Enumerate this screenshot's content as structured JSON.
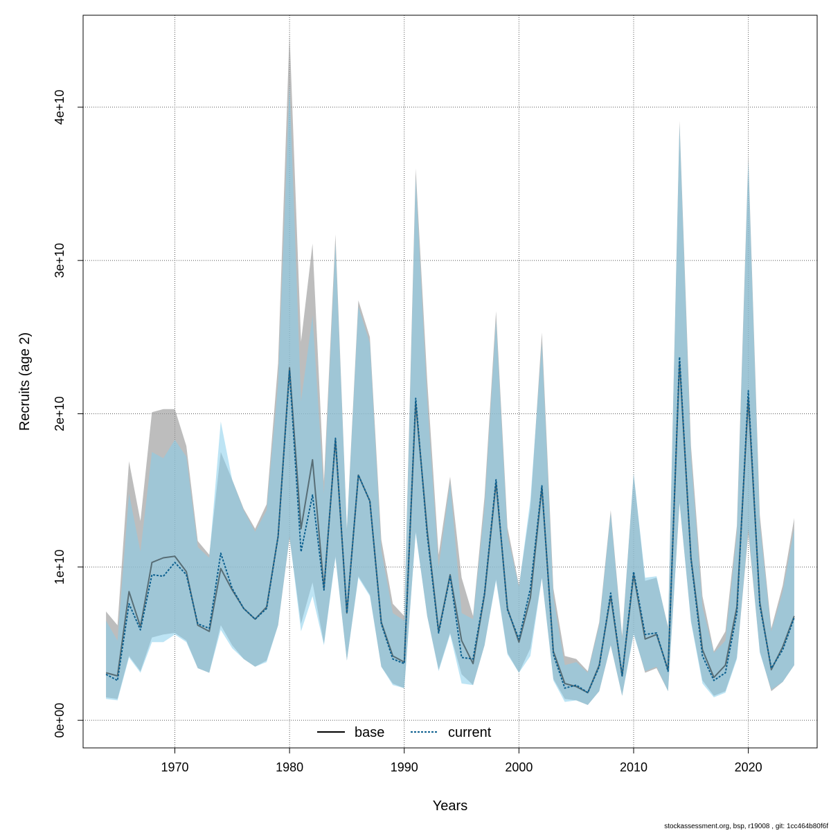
{
  "chart_data": {
    "type": "line",
    "xlabel": "Years",
    "ylabel": "Recruits (age 2)",
    "xlim": [
      1962,
      2026
    ],
    "ylim": [
      -1800000000.0,
      46000000000.0
    ],
    "x_ticks": [
      1970,
      1980,
      1990,
      2000,
      2010,
      2020
    ],
    "y_ticks": [
      0,
      10000000000.0,
      20000000000.0,
      30000000000.0,
      40000000000.0
    ],
    "y_tick_labels": [
      "0e+00",
      "1e+10",
      "2e+10",
      "3e+10",
      "4e+10"
    ],
    "grid": true,
    "legend_position": "bottom-center",
    "x": [
      1964,
      1965,
      1966,
      1967,
      1968,
      1969,
      1970,
      1971,
      1972,
      1973,
      1974,
      1975,
      1976,
      1977,
      1978,
      1979,
      1980,
      1981,
      1982,
      1983,
      1984,
      1985,
      1986,
      1987,
      1988,
      1989,
      1990,
      1991,
      1992,
      1993,
      1994,
      1995,
      1996,
      1997,
      1998,
      1999,
      2000,
      2001,
      2002,
      2003,
      2004,
      2005,
      2006,
      2007,
      2008,
      2009,
      2010,
      2011,
      2012,
      2013,
      2014,
      2015,
      2016,
      2017,
      2018,
      2019,
      2020,
      2021,
      2022,
      2023,
      2024
    ],
    "series": [
      {
        "name": "base",
        "color": "#000000",
        "band_color": "#999999",
        "dash": "solid",
        "values": [
          3100000000.0,
          2900000000.0,
          8400000000.0,
          6100000000.0,
          10300000000.0,
          10600000000.0,
          10700000000.0,
          9700000000.0,
          6200000000.0,
          5800000000.0,
          9900000000.0,
          8500000000.0,
          7300000000.0,
          6600000000.0,
          7400000000.0,
          12000000000.0,
          23000000000.0,
          12500000000.0,
          17000000000.0,
          8600000000.0,
          18300000000.0,
          7000000000.0,
          16000000000.0,
          14300000000.0,
          6400000000.0,
          4200000000.0,
          3800000000.0,
          20700000000.0,
          12400000000.0,
          5800000000.0,
          9500000000.0,
          5200000000.0,
          3700000000.0,
          8200000000.0,
          15500000000.0,
          7300000000.0,
          5100000000.0,
          8000000000.0,
          15200000000.0,
          4500000000.0,
          2400000000.0,
          2200000000.0,
          1800000000.0,
          3600000000.0,
          8100000000.0,
          2900000000.0,
          9500000000.0,
          5300000000.0,
          5600000000.0,
          3300000000.0,
          23400000000.0,
          10600000000.0,
          4600000000.0,
          2800000000.0,
          3600000000.0,
          7400000000.0,
          21000000000.0,
          7700000000.0,
          3300000000.0,
          4800000000.0,
          6800000000.0
        ],
        "lower": [
          1500000000.0,
          1400000000.0,
          4200000000.0,
          3200000000.0,
          5400000000.0,
          5600000000.0,
          5700000000.0,
          5200000000.0,
          3400000000.0,
          3100000000.0,
          6200000000.0,
          4900000000.0,
          4000000000.0,
          3500000000.0,
          3900000000.0,
          6200000000.0,
          11900000000.0,
          6300000000.0,
          9000000000.0,
          5000000000.0,
          10700000000.0,
          3900000000.0,
          9400000000.0,
          8200000000.0,
          3500000000.0,
          2400000000.0,
          2100000000.0,
          12300000000.0,
          6800000000.0,
          3300000000.0,
          5700000000.0,
          3000000000.0,
          2300000000.0,
          4900000000.0,
          9200000000.0,
          4400000000.0,
          3100000000.0,
          4700000000.0,
          9300000000.0,
          2700000000.0,
          1400000000.0,
          1300000000.0,
          1000000000.0,
          1900000000.0,
          4900000000.0,
          1600000000.0,
          5700000000.0,
          3100000000.0,
          3400000000.0,
          1900000000.0,
          14200000000.0,
          6500000000.0,
          2600000000.0,
          1600000000.0,
          1900000000.0,
          4100000000.0,
          12200000000.0,
          4500000000.0,
          1900000000.0,
          2500000000.0,
          3600000000.0
        ],
        "upper": [
          7100000000.0,
          6200000000.0,
          16900000000.0,
          13000000000.0,
          20100000000.0,
          20300000000.0,
          20300000000.0,
          17900000000.0,
          11700000000.0,
          10800000000.0,
          17500000000.0,
          15700000000.0,
          13800000000.0,
          12500000000.0,
          14100000000.0,
          23300000000.0,
          44900000000.0,
          24700000000.0,
          31100000000.0,
          15600000000.0,
          31700000000.0,
          12500000000.0,
          27400000000.0,
          25000000000.0,
          11800000000.0,
          7600000000.0,
          6800000000.0,
          36000000000.0,
          22200000000.0,
          10800000000.0,
          15900000000.0,
          9300000000.0,
          6800000000.0,
          14600000000.0,
          26700000000.0,
          12600000000.0,
          8800000000.0,
          13900000000.0,
          25300000000.0,
          8600000000.0,
          4200000000.0,
          4000000000.0,
          3200000000.0,
          6400000000.0,
          13700000000.0,
          5500000000.0,
          16100000000.0,
          9100000000.0,
          9300000000.0,
          6100000000.0,
          39100000000.0,
          17900000000.0,
          8100000000.0,
          4500000000.0,
          5800000000.0,
          12700000000.0,
          36800000000.0,
          13400000000.0,
          6000000000.0,
          8800000000.0,
          13200000000.0
        ]
      },
      {
        "name": "current",
        "color": "#0b5f8f",
        "band_color": "#87ceeb",
        "dash": "dotted",
        "values": [
          3000000000.0,
          2600000000.0,
          7600000000.0,
          5900000000.0,
          9500000000.0,
          9400000000.0,
          10300000000.0,
          9500000000.0,
          6300000000.0,
          6000000000.0,
          10900000000.0,
          8600000000.0,
          7300000000.0,
          6600000000.0,
          7300000000.0,
          12000000000.0,
          22800000000.0,
          11000000000.0,
          14700000000.0,
          8500000000.0,
          18400000000.0,
          7000000000.0,
          16000000000.0,
          14300000000.0,
          6300000000.0,
          4000000000.0,
          3700000000.0,
          21000000000.0,
          12100000000.0,
          5700000000.0,
          9400000000.0,
          4100000000.0,
          4000000000.0,
          8300000000.0,
          15700000000.0,
          7200000000.0,
          5300000000.0,
          8600000000.0,
          15300000000.0,
          4300000000.0,
          2100000000.0,
          2300000000.0,
          1800000000.0,
          3500000000.0,
          8300000000.0,
          2900000000.0,
          9700000000.0,
          5600000000.0,
          5700000000.0,
          3200000000.0,
          23700000000.0,
          10500000000.0,
          4200000000.0,
          2600000000.0,
          3100000000.0,
          7000000000.0,
          21500000000.0,
          7500000000.0,
          3400000000.0,
          4600000000.0,
          6700000000.0
        ],
        "lower": [
          1400000000.0,
          1300000000.0,
          4100000000.0,
          3100000000.0,
          5100000000.0,
          5100000000.0,
          5600000000.0,
          5100000000.0,
          3400000000.0,
          3100000000.0,
          5900000000.0,
          4700000000.0,
          4000000000.0,
          3500000000.0,
          3800000000.0,
          6200000000.0,
          12000000000.0,
          5800000000.0,
          8100000000.0,
          4900000000.0,
          10600000000.0,
          3900000000.0,
          9300000000.0,
          8100000000.0,
          3500000000.0,
          2300000000.0,
          2100000000.0,
          12200000000.0,
          6800000000.0,
          3200000000.0,
          5600000000.0,
          2400000000.0,
          2300000000.0,
          4900000000.0,
          9100000000.0,
          4300000000.0,
          3100000000.0,
          4200000000.0,
          9300000000.0,
          2600000000.0,
          1200000000.0,
          1300000000.0,
          1000000000.0,
          1900000000.0,
          4900000000.0,
          1600000000.0,
          5600000000.0,
          3200000000.0,
          3500000000.0,
          1900000000.0,
          14200000000.0,
          6400000000.0,
          2400000000.0,
          1500000000.0,
          1800000000.0,
          4000000000.0,
          12500000000.0,
          4400000000.0,
          2000000000.0,
          2500000000.0,
          3600000000.0
        ],
        "upper": [
          6500000000.0,
          5200000000.0,
          14800000000.0,
          11000000000.0,
          17500000000.0,
          17100000000.0,
          18300000000.0,
          17200000000.0,
          11300000000.0,
          10600000000.0,
          19500000000.0,
          15700000000.0,
          13700000000.0,
          12300000000.0,
          13700000000.0,
          22000000000.0,
          41500000000.0,
          20800000000.0,
          26400000000.0,
          14800000000.0,
          31100000000.0,
          12400000000.0,
          27000000000.0,
          24600000000.0,
          11100000000.0,
          7000000000.0,
          6500000000.0,
          35400000000.0,
          20900000000.0,
          10000000000.0,
          15500000000.0,
          7000000000.0,
          6600000000.0,
          13900000000.0,
          26100000000.0,
          12100000000.0,
          8700000000.0,
          14400000000.0,
          24600000000.0,
          8000000000.0,
          3600000000.0,
          3800000000.0,
          3100000000.0,
          6200000000.0,
          13500000000.0,
          5300000000.0,
          16100000000.0,
          9300000000.0,
          9400000000.0,
          6000000000.0,
          38800000000.0,
          17200000000.0,
          7400000000.0,
          4400000000.0,
          5200000000.0,
          12200000000.0,
          36500000000.0,
          12800000000.0,
          5800000000.0,
          8400000000.0,
          12500000000.0
        ]
      }
    ]
  },
  "footer": "stockassessment.org, bsp, r19008 , git: 1cc464b80f6f"
}
